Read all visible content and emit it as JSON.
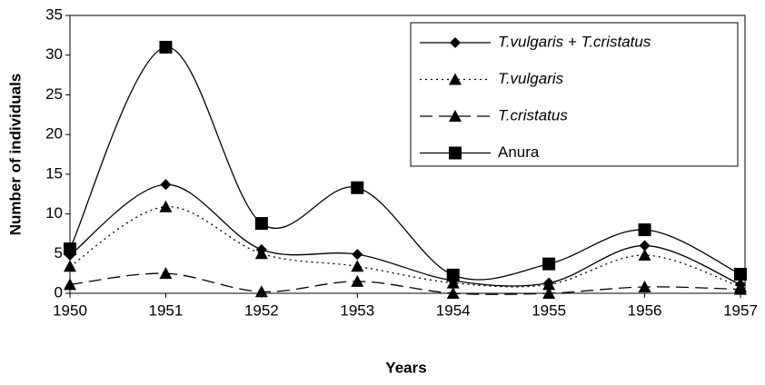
{
  "chart_data": {
    "type": "line",
    "x_label": "Years",
    "y_label": "Number of individuals",
    "categories": [
      "1950",
      "1951",
      "1952",
      "1953",
      "1954",
      "1955",
      "1956",
      "1957"
    ],
    "ylim": [
      0,
      35
    ],
    "yticks": [
      0,
      5,
      10,
      15,
      20,
      25,
      30,
      35
    ],
    "grid": false,
    "legend": "upper right",
    "smooth": true,
    "series": [
      {
        "name": "T.vulgaris + T.cristatus",
        "color": "#000000",
        "dash": "solid",
        "marker": "diamond",
        "italic": true,
        "values": [
          4.8,
          13.7,
          5.5,
          4.9,
          1.6,
          1.3,
          6,
          1.1
        ]
      },
      {
        "name": "T.vulgaris",
        "color": "#000000",
        "dash": "dotted",
        "marker": "triangle",
        "italic": true,
        "values": [
          3.4,
          10.9,
          5,
          3.4,
          1.3,
          1.1,
          4.8,
          0.8
        ]
      },
      {
        "name": "T.cristatus",
        "color": "#000000",
        "dash": "dashed",
        "marker": "triangle",
        "italic": true,
        "values": [
          1.1,
          2.5,
          0.2,
          1.5,
          0,
          0,
          0.8,
          0.5
        ]
      },
      {
        "name": "Anura",
        "color": "#000000",
        "dash": "solid",
        "marker": "square",
        "italic": false,
        "values": [
          5.6,
          31,
          8.8,
          13.3,
          2.3,
          3.7,
          8,
          2.4
        ]
      }
    ]
  }
}
